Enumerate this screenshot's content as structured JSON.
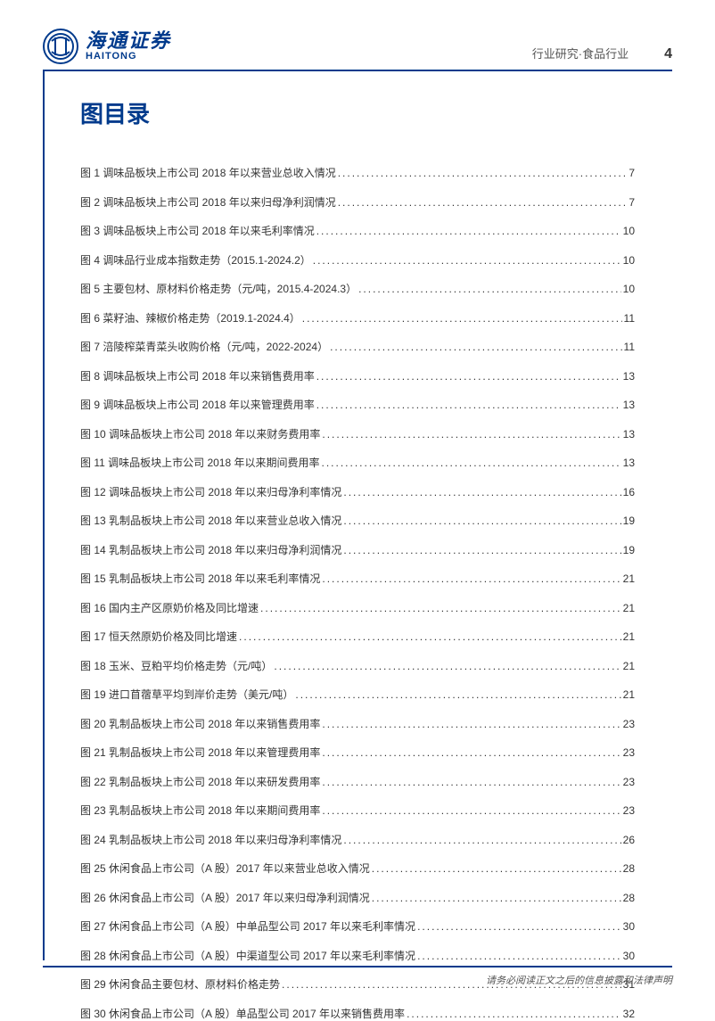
{
  "header": {
    "logo_cn": "海通证券",
    "logo_en": "HAITONG",
    "category": "行业研究·食品行业",
    "page_number": "4"
  },
  "title": "图目录",
  "toc": [
    {
      "label": "图 1 调味品板块上市公司 2018 年以来营业总收入情况",
      "page": "7"
    },
    {
      "label": "图 2 调味品板块上市公司 2018 年以来归母净利润情况",
      "page": "7"
    },
    {
      "label": "图 3 调味品板块上市公司 2018 年以来毛利率情况",
      "page": "10"
    },
    {
      "label": "图 4 调味品行业成本指数走势（2015.1-2024.2）",
      "page": "10"
    },
    {
      "label": "图 5 主要包材、原材料价格走势（元/吨，2015.4-2024.3）",
      "page": "10"
    },
    {
      "label": "图 6 菜籽油、辣椒价格走势（2019.1-2024.4）",
      "page": "11"
    },
    {
      "label": "图 7 涪陵榨菜青菜头收购价格（元/吨，2022-2024）",
      "page": "11"
    },
    {
      "label": "图 8 调味品板块上市公司 2018 年以来销售费用率",
      "page": "13"
    },
    {
      "label": "图 9 调味品板块上市公司 2018 年以来管理费用率",
      "page": "13"
    },
    {
      "label": "图 10 调味品板块上市公司 2018 年以来财务费用率",
      "page": "13"
    },
    {
      "label": "图 11 调味品板块上市公司 2018 年以来期间费用率",
      "page": "13"
    },
    {
      "label": "图 12 调味品板块上市公司 2018 年以来归母净利率情况",
      "page": "16"
    },
    {
      "label": "图 13 乳制品板块上市公司 2018 年以来营业总收入情况",
      "page": "19"
    },
    {
      "label": "图 14 乳制品板块上市公司 2018 年以来归母净利润情况",
      "page": "19"
    },
    {
      "label": "图 15 乳制品板块上市公司 2018 年以来毛利率情况",
      "page": "21"
    },
    {
      "label": "图 16 国内主产区原奶价格及同比增速",
      "page": "21"
    },
    {
      "label": "图 17 恒天然原奶价格及同比增速",
      "page": "21"
    },
    {
      "label": "图 18 玉米、豆粕平均价格走势（元/吨）",
      "page": "21"
    },
    {
      "label": "图 19 进口苜蓿草平均到岸价走势（美元/吨）",
      "page": "21"
    },
    {
      "label": "图 20 乳制品板块上市公司 2018 年以来销售费用率",
      "page": "23"
    },
    {
      "label": "图 21 乳制品板块上市公司 2018 年以来管理费用率",
      "page": "23"
    },
    {
      "label": "图 22 乳制品板块上市公司 2018 年以来研发费用率",
      "page": "23"
    },
    {
      "label": "图 23 乳制品板块上市公司 2018 年以来期间费用率",
      "page": "23"
    },
    {
      "label": "图 24 乳制品板块上市公司 2018 年以来归母净利率情况",
      "page": "26"
    },
    {
      "label": "图 25 休闲食品上市公司（A 股）2017 年以来营业总收入情况",
      "page": "28"
    },
    {
      "label": "图 26 休闲食品上市公司（A 股）2017 年以来归母净利润情况",
      "page": "28"
    },
    {
      "label": "图 27 休闲食品上市公司（A 股）中单品型公司 2017 年以来毛利率情况",
      "page": "30"
    },
    {
      "label": "图 28 休闲食品上市公司（A 股）中渠道型公司 2017 年以来毛利率情况",
      "page": "30"
    },
    {
      "label": "图 29 休闲食品主要包材、原材料价格走势",
      "page": "31"
    },
    {
      "label": "图 30 休闲食品上市公司（A 股）单品型公司 2017 年以来销售费用率",
      "page": "32"
    }
  ],
  "footer": "请务必阅读正文之后的信息披露和法律声明",
  "colors": {
    "brand": "#003a8c",
    "text": "#333333",
    "muted": "#555555",
    "background": "#ffffff"
  }
}
